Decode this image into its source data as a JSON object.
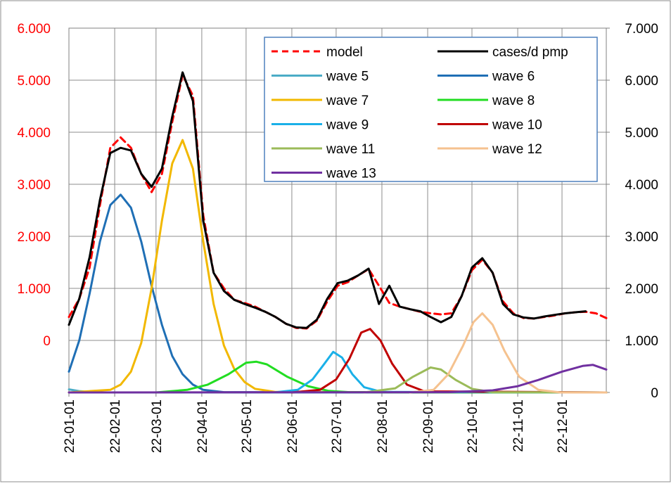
{
  "chart_data": {
    "type": "line",
    "title": "",
    "xlabel": "",
    "ylabel": "",
    "x_ticks": [
      "22-01-01",
      "22-02-01",
      "22-03-01",
      "22-04-01",
      "22-05-01",
      "22-06-01",
      "22-07-01",
      "22-08-01",
      "22-09-01",
      "22-10-01",
      "22-11-01",
      "22-12-01"
    ],
    "x_start": "2022-01-01",
    "x_end": "2022-12-31",
    "y_left": {
      "range": [
        -1000,
        6000
      ],
      "ticks": [
        0,
        1000,
        2000,
        3000,
        4000,
        5000,
        6000
      ],
      "tick_labels": [
        "0",
        "1.000",
        "2.000",
        "3.000",
        "4.000",
        "5.000",
        "6.000"
      ],
      "tick_color": "#ff0000"
    },
    "y_right": {
      "range": [
        0,
        7000
      ],
      "ticks": [
        0,
        1000,
        2000,
        3000,
        4000,
        5000,
        6000,
        7000
      ],
      "tick_labels": [
        "0",
        "1.000",
        "2.000",
        "3.000",
        "4.000",
        "5.000",
        "6.000",
        "7.000"
      ],
      "tick_color": "#000000"
    },
    "grid": true,
    "legend_position": "top-right",
    "series": [
      {
        "name": "model",
        "axis": "right",
        "color": "#ff0000",
        "dash": true,
        "points": [
          [
            "2022-01-01",
            1450
          ],
          [
            "2022-01-08",
            1800
          ],
          [
            "2022-01-15",
            2400
          ],
          [
            "2022-01-22",
            3600
          ],
          [
            "2022-01-29",
            4700
          ],
          [
            "2022-02-05",
            4900
          ],
          [
            "2022-02-12",
            4700
          ],
          [
            "2022-02-19",
            4200
          ],
          [
            "2022-02-26",
            3850
          ],
          [
            "2022-03-05",
            4200
          ],
          [
            "2022-03-12",
            5200
          ],
          [
            "2022-03-19",
            6100
          ],
          [
            "2022-03-26",
            5700
          ],
          [
            "2022-04-02",
            3400
          ],
          [
            "2022-04-09",
            2300
          ],
          [
            "2022-04-16",
            2000
          ],
          [
            "2022-04-23",
            1780
          ],
          [
            "2022-04-30",
            1720
          ],
          [
            "2022-05-07",
            1650
          ],
          [
            "2022-05-14",
            1550
          ],
          [
            "2022-05-21",
            1450
          ],
          [
            "2022-05-28",
            1320
          ],
          [
            "2022-06-04",
            1240
          ],
          [
            "2022-06-11",
            1230
          ],
          [
            "2022-06-18",
            1380
          ],
          [
            "2022-06-25",
            1750
          ],
          [
            "2022-07-02",
            2050
          ],
          [
            "2022-07-09",
            2120
          ],
          [
            "2022-07-16",
            2250
          ],
          [
            "2022-07-23",
            2370
          ],
          [
            "2022-07-30",
            2050
          ],
          [
            "2022-08-06",
            1720
          ],
          [
            "2022-08-13",
            1650
          ],
          [
            "2022-08-20",
            1600
          ],
          [
            "2022-08-27",
            1550
          ],
          [
            "2022-09-03",
            1520
          ],
          [
            "2022-09-10",
            1500
          ],
          [
            "2022-09-17",
            1520
          ],
          [
            "2022-09-24",
            1850
          ],
          [
            "2022-10-01",
            2350
          ],
          [
            "2022-10-08",
            2550
          ],
          [
            "2022-10-15",
            2300
          ],
          [
            "2022-10-22",
            1750
          ],
          [
            "2022-10-29",
            1520
          ],
          [
            "2022-11-05",
            1430
          ],
          [
            "2022-11-12",
            1420
          ],
          [
            "2022-11-19",
            1450
          ],
          [
            "2022-11-26",
            1480
          ],
          [
            "2022-12-03",
            1520
          ],
          [
            "2022-12-10",
            1540
          ],
          [
            "2022-12-17",
            1550
          ],
          [
            "2022-12-24",
            1520
          ],
          [
            "2022-12-31",
            1430
          ]
        ]
      },
      {
        "name": "cases/d pmp",
        "axis": "right",
        "color": "#000000",
        "dash": false,
        "points": [
          [
            "2022-01-01",
            1300
          ],
          [
            "2022-01-08",
            1800
          ],
          [
            "2022-01-15",
            2600
          ],
          [
            "2022-01-22",
            3700
          ],
          [
            "2022-01-29",
            4600
          ],
          [
            "2022-02-05",
            4700
          ],
          [
            "2022-02-12",
            4650
          ],
          [
            "2022-02-19",
            4200
          ],
          [
            "2022-02-26",
            3950
          ],
          [
            "2022-03-05",
            4300
          ],
          [
            "2022-03-12",
            5300
          ],
          [
            "2022-03-19",
            6150
          ],
          [
            "2022-03-26",
            5600
          ],
          [
            "2022-04-02",
            3300
          ],
          [
            "2022-04-09",
            2300
          ],
          [
            "2022-04-16",
            1950
          ],
          [
            "2022-04-23",
            1780
          ],
          [
            "2022-04-30",
            1700
          ],
          [
            "2022-05-07",
            1630
          ],
          [
            "2022-05-14",
            1550
          ],
          [
            "2022-05-21",
            1450
          ],
          [
            "2022-05-28",
            1320
          ],
          [
            "2022-06-04",
            1250
          ],
          [
            "2022-06-11",
            1240
          ],
          [
            "2022-06-18",
            1400
          ],
          [
            "2022-06-25",
            1800
          ],
          [
            "2022-07-02",
            2100
          ],
          [
            "2022-07-09",
            2150
          ],
          [
            "2022-07-16",
            2250
          ],
          [
            "2022-07-23",
            2380
          ],
          [
            "2022-07-30",
            1700
          ],
          [
            "2022-08-06",
            2050
          ],
          [
            "2022-08-13",
            1650
          ],
          [
            "2022-08-20",
            1600
          ],
          [
            "2022-08-27",
            1560
          ],
          [
            "2022-09-03",
            1450
          ],
          [
            "2022-09-10",
            1350
          ],
          [
            "2022-09-17",
            1450
          ],
          [
            "2022-09-24",
            1850
          ],
          [
            "2022-10-01",
            2400
          ],
          [
            "2022-10-08",
            2580
          ],
          [
            "2022-10-15",
            2300
          ],
          [
            "2022-10-22",
            1700
          ],
          [
            "2022-10-29",
            1500
          ],
          [
            "2022-11-05",
            1440
          ],
          [
            "2022-11-12",
            1420
          ],
          [
            "2022-11-19",
            1460
          ],
          [
            "2022-11-26",
            1490
          ],
          [
            "2022-12-03",
            1520
          ],
          [
            "2022-12-10",
            1540
          ],
          [
            "2022-12-17",
            1560
          ]
        ]
      },
      {
        "name": "wave 5",
        "axis": "left",
        "color": "#4bacc6",
        "dash": false,
        "points": [
          [
            "2022-01-01",
            -940
          ],
          [
            "2022-01-08",
            -975
          ],
          [
            "2022-01-15",
            -990
          ],
          [
            "2022-01-22",
            -1000
          ],
          [
            "2022-12-31",
            -1000
          ]
        ]
      },
      {
        "name": "wave 6",
        "axis": "left",
        "color": "#1f6fb5",
        "dash": false,
        "points": [
          [
            "2022-01-01",
            -600
          ],
          [
            "2022-01-08",
            0
          ],
          [
            "2022-01-15",
            900
          ],
          [
            "2022-01-22",
            1900
          ],
          [
            "2022-01-29",
            2600
          ],
          [
            "2022-02-05",
            2800
          ],
          [
            "2022-02-12",
            2550
          ],
          [
            "2022-02-19",
            1900
          ],
          [
            "2022-02-26",
            1050
          ],
          [
            "2022-03-05",
            300
          ],
          [
            "2022-03-12",
            -300
          ],
          [
            "2022-03-19",
            -650
          ],
          [
            "2022-03-26",
            -850
          ],
          [
            "2022-04-02",
            -950
          ],
          [
            "2022-04-16",
            -995
          ],
          [
            "2022-12-31",
            -1000
          ]
        ]
      },
      {
        "name": "wave 7",
        "axis": "left",
        "color": "#f2b800",
        "dash": false,
        "points": [
          [
            "2022-01-01",
            -1000
          ],
          [
            "2022-01-29",
            -950
          ],
          [
            "2022-02-05",
            -850
          ],
          [
            "2022-02-12",
            -600
          ],
          [
            "2022-02-19",
            -50
          ],
          [
            "2022-02-26",
            1000
          ],
          [
            "2022-03-05",
            2300
          ],
          [
            "2022-03-12",
            3400
          ],
          [
            "2022-03-19",
            3850
          ],
          [
            "2022-03-26",
            3300
          ],
          [
            "2022-04-02",
            1900
          ],
          [
            "2022-04-09",
            700
          ],
          [
            "2022-04-16",
            -100
          ],
          [
            "2022-04-23",
            -550
          ],
          [
            "2022-04-30",
            -800
          ],
          [
            "2022-05-07",
            -930
          ],
          [
            "2022-05-21",
            -990
          ],
          [
            "2022-12-31",
            -1000
          ]
        ]
      },
      {
        "name": "wave 8",
        "axis": "left",
        "color": "#22dd22",
        "dash": false,
        "points": [
          [
            "2022-03-01",
            -1000
          ],
          [
            "2022-03-22",
            -950
          ],
          [
            "2022-04-05",
            -850
          ],
          [
            "2022-04-19",
            -650
          ],
          [
            "2022-05-01",
            -430
          ],
          [
            "2022-05-08",
            -410
          ],
          [
            "2022-05-15",
            -460
          ],
          [
            "2022-05-29",
            -700
          ],
          [
            "2022-06-12",
            -880
          ],
          [
            "2022-06-26",
            -970
          ],
          [
            "2022-07-10",
            -995
          ],
          [
            "2022-12-31",
            -1000
          ]
        ]
      },
      {
        "name": "wave 9",
        "axis": "left",
        "color": "#1ab0e8",
        "dash": false,
        "points": [
          [
            "2022-05-20",
            -1000
          ],
          [
            "2022-06-05",
            -950
          ],
          [
            "2022-06-15",
            -750
          ],
          [
            "2022-06-23",
            -450
          ],
          [
            "2022-06-29",
            -220
          ],
          [
            "2022-07-05",
            -330
          ],
          [
            "2022-07-12",
            -650
          ],
          [
            "2022-07-20",
            -900
          ],
          [
            "2022-08-01",
            -990
          ],
          [
            "2022-12-31",
            -1000
          ]
        ]
      },
      {
        "name": "wave 10",
        "axis": "left",
        "color": "#c00000",
        "dash": false,
        "points": [
          [
            "2022-06-01",
            -1000
          ],
          [
            "2022-06-20",
            -950
          ],
          [
            "2022-07-01",
            -750
          ],
          [
            "2022-07-10",
            -350
          ],
          [
            "2022-07-18",
            150
          ],
          [
            "2022-07-24",
            220
          ],
          [
            "2022-07-31",
            0
          ],
          [
            "2022-08-08",
            -450
          ],
          [
            "2022-08-18",
            -850
          ],
          [
            "2022-08-30",
            -980
          ],
          [
            "2022-12-31",
            -1000
          ]
        ]
      },
      {
        "name": "wave 11",
        "axis": "left",
        "color": "#9bbb59",
        "dash": false,
        "points": [
          [
            "2022-07-20",
            -1000
          ],
          [
            "2022-08-10",
            -920
          ],
          [
            "2022-08-22",
            -700
          ],
          [
            "2022-09-03",
            -520
          ],
          [
            "2022-09-10",
            -560
          ],
          [
            "2022-09-20",
            -760
          ],
          [
            "2022-10-01",
            -930
          ],
          [
            "2022-10-15",
            -995
          ],
          [
            "2022-12-31",
            -1000
          ]
        ]
      },
      {
        "name": "wave 12",
        "axis": "left",
        "color": "#f5c28f",
        "dash": false,
        "points": [
          [
            "2022-08-20",
            -1000
          ],
          [
            "2022-09-05",
            -950
          ],
          [
            "2022-09-15",
            -650
          ],
          [
            "2022-09-25",
            -100
          ],
          [
            "2022-10-02",
            350
          ],
          [
            "2022-10-08",
            520
          ],
          [
            "2022-10-15",
            300
          ],
          [
            "2022-10-23",
            -200
          ],
          [
            "2022-11-02",
            -700
          ],
          [
            "2022-11-15",
            -950
          ],
          [
            "2022-11-30",
            -1000
          ],
          [
            "2022-12-31",
            -1000
          ]
        ]
      },
      {
        "name": "wave 13",
        "axis": "left",
        "color": "#7030a0",
        "dash": false,
        "points": [
          [
            "2022-01-01",
            -1000
          ],
          [
            "2022-09-15",
            -995
          ],
          [
            "2022-10-15",
            -960
          ],
          [
            "2022-11-01",
            -880
          ],
          [
            "2022-11-15",
            -760
          ],
          [
            "2022-12-01",
            -600
          ],
          [
            "2022-12-15",
            -490
          ],
          [
            "2022-12-22",
            -470
          ],
          [
            "2022-12-31",
            -560
          ]
        ]
      }
    ]
  }
}
